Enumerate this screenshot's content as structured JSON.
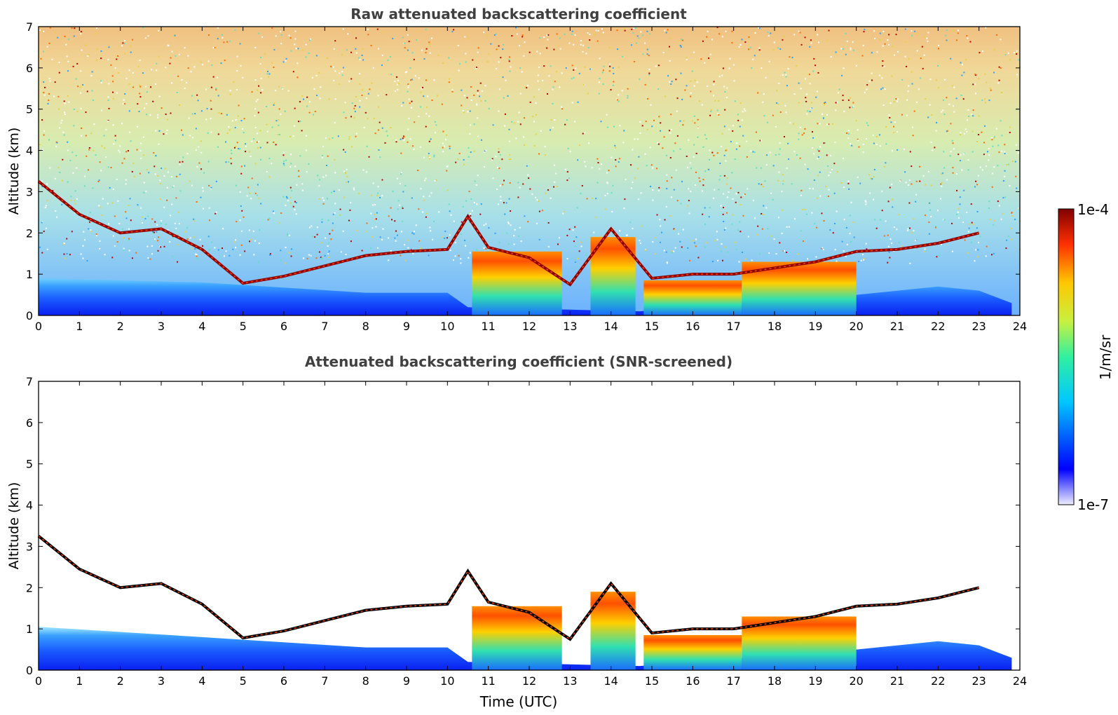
{
  "chart_data": [
    {
      "type": "heatmap",
      "title": "Raw attenuated backscattering coefficient",
      "xlabel": "",
      "ylabel": "Altitude (km)",
      "xlim": [
        0,
        24
      ],
      "ylim": [
        0,
        7
      ],
      "x_ticks": [
        "0",
        "1",
        "2",
        "3",
        "4",
        "5",
        "6",
        "7",
        "8",
        "9",
        "10",
        "11",
        "12",
        "13",
        "14",
        "15",
        "16",
        "17",
        "18",
        "19",
        "20",
        "21",
        "22",
        "23",
        "24"
      ],
      "y_ticks": [
        "0",
        "1",
        "2",
        "3",
        "4",
        "5",
        "6",
        "7"
      ],
      "noise_floor": true,
      "layer_tops_km": [
        [
          0,
          3.25
        ],
        [
          1,
          2.45
        ],
        [
          2,
          2.0
        ],
        [
          3,
          2.1
        ],
        [
          4,
          1.6
        ],
        [
          5,
          0.78
        ],
        [
          6,
          0.95
        ],
        [
          7,
          1.2
        ],
        [
          8,
          1.45
        ],
        [
          9,
          1.55
        ],
        [
          10,
          1.6
        ],
        [
          10.5,
          2.4
        ],
        [
          11,
          1.65
        ],
        [
          12,
          1.4
        ],
        [
          13,
          0.75
        ],
        [
          14,
          2.1
        ],
        [
          15,
          0.9
        ],
        [
          16,
          1.0
        ],
        [
          17,
          1.0
        ],
        [
          18,
          1.15
        ],
        [
          19,
          1.3
        ],
        [
          20,
          1.55
        ],
        [
          21,
          1.6
        ],
        [
          22,
          1.75
        ],
        [
          23,
          2.0
        ]
      ]
    },
    {
      "type": "heatmap",
      "title": "Attenuated backscattering coefficient (SNR-screened)",
      "xlabel": "Time (UTC)",
      "ylabel": "Altitude (km)",
      "xlim": [
        0,
        24
      ],
      "ylim": [
        0,
        7
      ],
      "x_ticks": [
        "0",
        "1",
        "2",
        "3",
        "4",
        "5",
        "6",
        "7",
        "8",
        "9",
        "10",
        "11",
        "12",
        "13",
        "14",
        "15",
        "16",
        "17",
        "18",
        "19",
        "20",
        "21",
        "22",
        "23",
        "24"
      ],
      "y_ticks": [
        "0",
        "1",
        "2",
        "3",
        "4",
        "5",
        "6",
        "7"
      ],
      "noise_floor": false,
      "layer_tops_km": [
        [
          0,
          3.25
        ],
        [
          1,
          2.45
        ],
        [
          2,
          2.0
        ],
        [
          3,
          2.1
        ],
        [
          4,
          1.6
        ],
        [
          5,
          0.78
        ],
        [
          6,
          0.95
        ],
        [
          7,
          1.2
        ],
        [
          8,
          1.45
        ],
        [
          9,
          1.55
        ],
        [
          10,
          1.6
        ],
        [
          10.5,
          2.4
        ],
        [
          11,
          1.65
        ],
        [
          12,
          1.4
        ],
        [
          13,
          0.75
        ],
        [
          14,
          2.1
        ],
        [
          15,
          0.9
        ],
        [
          16,
          1.0
        ],
        [
          17,
          1.0
        ],
        [
          18,
          1.15
        ],
        [
          19,
          1.3
        ],
        [
          20,
          1.55
        ],
        [
          21,
          1.6
        ],
        [
          22,
          1.75
        ],
        [
          23,
          2.0
        ]
      ]
    }
  ],
  "colorbar": {
    "label": "1/m/sr",
    "max_label": "1e-4",
    "min_label": "1e-7",
    "colormap": "jet",
    "scale": "log"
  },
  "colors": {
    "title": "#404040",
    "axis": "#000000",
    "low": "#0a1aff",
    "high": "#8b0000"
  }
}
